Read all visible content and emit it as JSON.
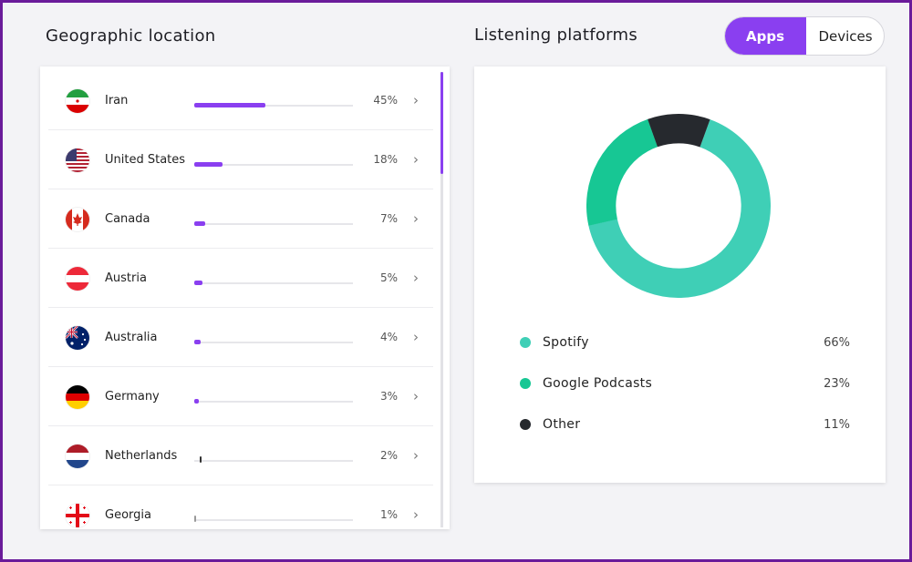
{
  "geographic": {
    "title": "Geographic location",
    "countries": [
      {
        "name": "Iran",
        "percent_label": "45%",
        "share": 45,
        "flag": "iran-flag-icon"
      },
      {
        "name": "United States",
        "percent_label": "18%",
        "share": 18,
        "flag": "us-flag-icon"
      },
      {
        "name": "Canada",
        "percent_label": "7%",
        "share": 7,
        "flag": "canada-flag-icon"
      },
      {
        "name": "Austria",
        "percent_label": "5%",
        "share": 5,
        "flag": "austria-flag-icon"
      },
      {
        "name": "Australia",
        "percent_label": "4%",
        "share": 4,
        "flag": "australia-flag-icon"
      },
      {
        "name": "Germany",
        "percent_label": "3%",
        "share": 3,
        "flag": "germany-flag-icon"
      },
      {
        "name": "Netherlands",
        "percent_label": "2%",
        "share": 2,
        "flag": "netherlands-flag-icon"
      },
      {
        "name": "Georgia",
        "percent_label": "1%",
        "share": 1,
        "flag": "georgia-flag-icon"
      }
    ]
  },
  "platforms": {
    "title": "Listening platforms",
    "toggle": {
      "active": "Apps",
      "inactive": "Devices"
    },
    "items": [
      {
        "name": "Spotify",
        "value_label": "66%",
        "share": 66,
        "color": "#3fcfb6"
      },
      {
        "name": "Google Podcasts",
        "value_label": "23%",
        "share": 23,
        "color": "#17c794"
      },
      {
        "name": "Other",
        "value_label": "11%",
        "share": 11,
        "color": "#26292e"
      }
    ]
  },
  "colors": {
    "accent": "#8a3ff0",
    "frame": "#6a1b9a"
  }
}
